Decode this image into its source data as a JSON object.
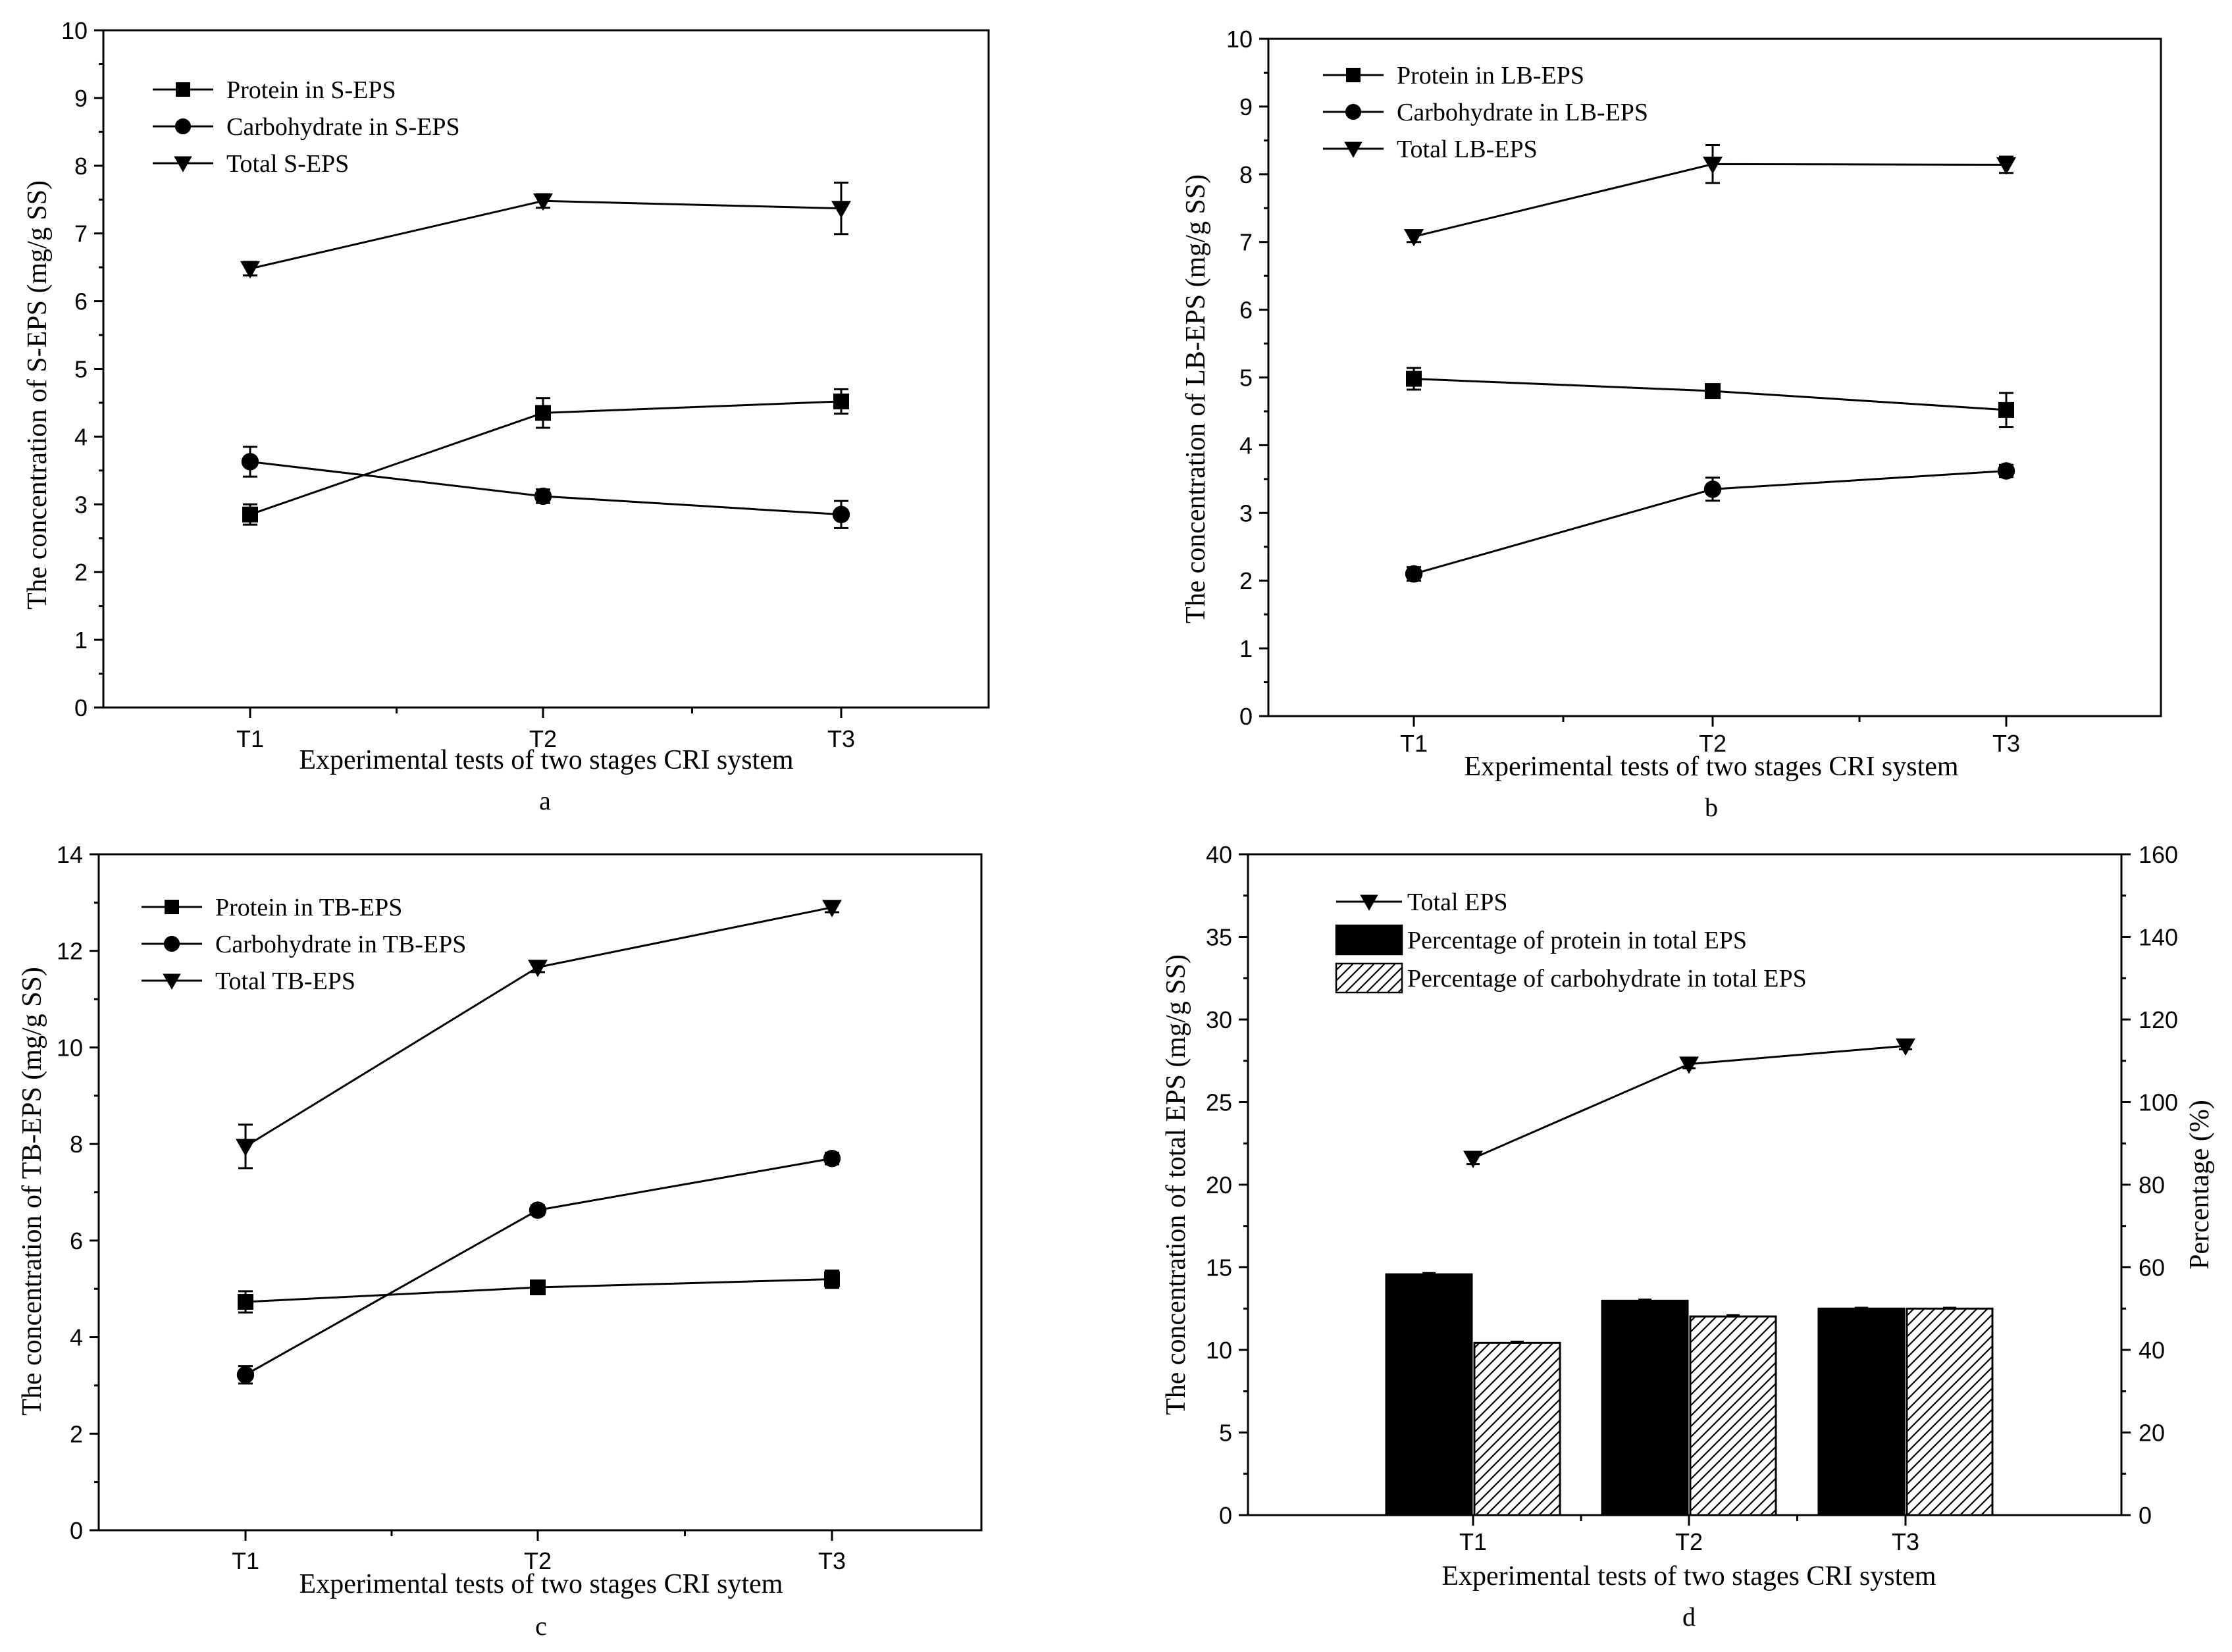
{
  "chart_data": [
    {
      "panel": "a",
      "type": "line",
      "categories": [
        "T1",
        "T2",
        "T3"
      ],
      "xlabel": "Experimental tests of two stages CRI system",
      "ylabel": "The concentration of S-EPS (mg/g SS)",
      "ylim": [
        0,
        10
      ],
      "yticks": [
        0,
        1,
        2,
        3,
        4,
        5,
        6,
        7,
        8,
        9,
        10
      ],
      "legend_position": "top-left",
      "grid": false,
      "series": [
        {
          "name": "Protein in S-EPS",
          "marker": "square",
          "values": [
            2.85,
            4.35,
            4.52
          ],
          "errors": [
            0.15,
            0.22,
            0.18
          ]
        },
        {
          "name": "Carbohydrate in S-EPS",
          "marker": "circle",
          "values": [
            3.63,
            3.12,
            2.85
          ],
          "errors": [
            0.22,
            0.1,
            0.2
          ]
        },
        {
          "name": "Total S-EPS",
          "marker": "triangle-down",
          "values": [
            6.48,
            7.48,
            7.37
          ],
          "errors": [
            0.1,
            0.1,
            0.38
          ]
        }
      ]
    },
    {
      "panel": "b",
      "type": "line",
      "categories": [
        "T1",
        "T2",
        "T3"
      ],
      "xlabel": "Experimental tests of two stages CRI system",
      "ylabel": "The concentration of LB-EPS (mg/g SS)",
      "ylim": [
        0,
        10
      ],
      "yticks": [
        0,
        1,
        2,
        3,
        4,
        5,
        6,
        7,
        8,
        9,
        10
      ],
      "legend_position": "top-left",
      "grid": false,
      "series": [
        {
          "name": "Protein in LB-EPS",
          "marker": "square",
          "values": [
            4.98,
            4.8,
            4.52
          ],
          "errors": [
            0.16,
            0.06,
            0.25
          ]
        },
        {
          "name": "Carbohydrate in LB-EPS",
          "marker": "circle",
          "values": [
            2.1,
            3.35,
            3.62
          ],
          "errors": [
            0.1,
            0.17,
            0.09
          ]
        },
        {
          "name": "Total LB-EPS",
          "marker": "triangle-down",
          "values": [
            7.08,
            8.15,
            8.14
          ],
          "errors": [
            0.08,
            0.28,
            0.12
          ]
        }
      ]
    },
    {
      "panel": "c",
      "type": "line",
      "categories": [
        "T1",
        "T2",
        "T3"
      ],
      "xlabel": "Experimental tests of two stages CRI sytem",
      "ylabel": "The concentration of TB-EPS (mg/g SS)",
      "ylim": [
        0,
        14
      ],
      "yticks": [
        0,
        2,
        4,
        6,
        8,
        10,
        12,
        14
      ],
      "legend_position": "top-left",
      "grid": false,
      "series": [
        {
          "name": "Protein in TB-EPS",
          "marker": "square",
          "values": [
            4.73,
            5.03,
            5.2
          ],
          "errors": [
            0.22,
            0.1,
            0.18
          ]
        },
        {
          "name": "Carbohydrate in TB-EPS",
          "marker": "circle",
          "values": [
            3.22,
            6.63,
            7.7
          ],
          "errors": [
            0.18,
            0.1,
            0.12
          ]
        },
        {
          "name": "Total TB-EPS",
          "marker": "triangle-down",
          "values": [
            7.95,
            11.66,
            12.9
          ],
          "errors": [
            0.45,
            0.1,
            0.1
          ]
        }
      ]
    },
    {
      "panel": "d",
      "type": "bar",
      "categories": [
        "T1",
        "T2",
        "T3"
      ],
      "xlabel": "Experimental tests of two stages CRI system",
      "ylabel": "The concentration of total EPS (mg/g SS)",
      "ylabel_right": "Percentage (%)",
      "ylim": [
        0,
        40
      ],
      "yticks": [
        0,
        5,
        10,
        15,
        20,
        25,
        30,
        35,
        40
      ],
      "ylim_right": [
        0,
        160
      ],
      "yticks_right": [
        0,
        20,
        40,
        60,
        80,
        100,
        120,
        140,
        160
      ],
      "legend_position": "top-left",
      "grid": false,
      "line_series": {
        "name": "Total EPS",
        "marker": "triangle-down",
        "values": [
          21.6,
          27.3,
          28.4
        ],
        "errors": [
          0.35,
          0.25,
          0.2
        ]
      },
      "bar_series": [
        {
          "name": "Percentage of protein in total EPS",
          "fill": "solid",
          "values": [
            58.3,
            51.9,
            50.0
          ],
          "errors": [
            0.3,
            0.3,
            0.2
          ]
        },
        {
          "name": "Percentage of carbohydrate in total EPS",
          "fill": "hatched",
          "values": [
            41.7,
            48.1,
            50.0
          ],
          "errors": [
            0.3,
            0.3,
            0.2
          ]
        }
      ]
    }
  ],
  "colors": {
    "ink": "#000000",
    "background": "#ffffff",
    "solid_bar": "#000000",
    "hatched_bar": "#ffffff"
  }
}
